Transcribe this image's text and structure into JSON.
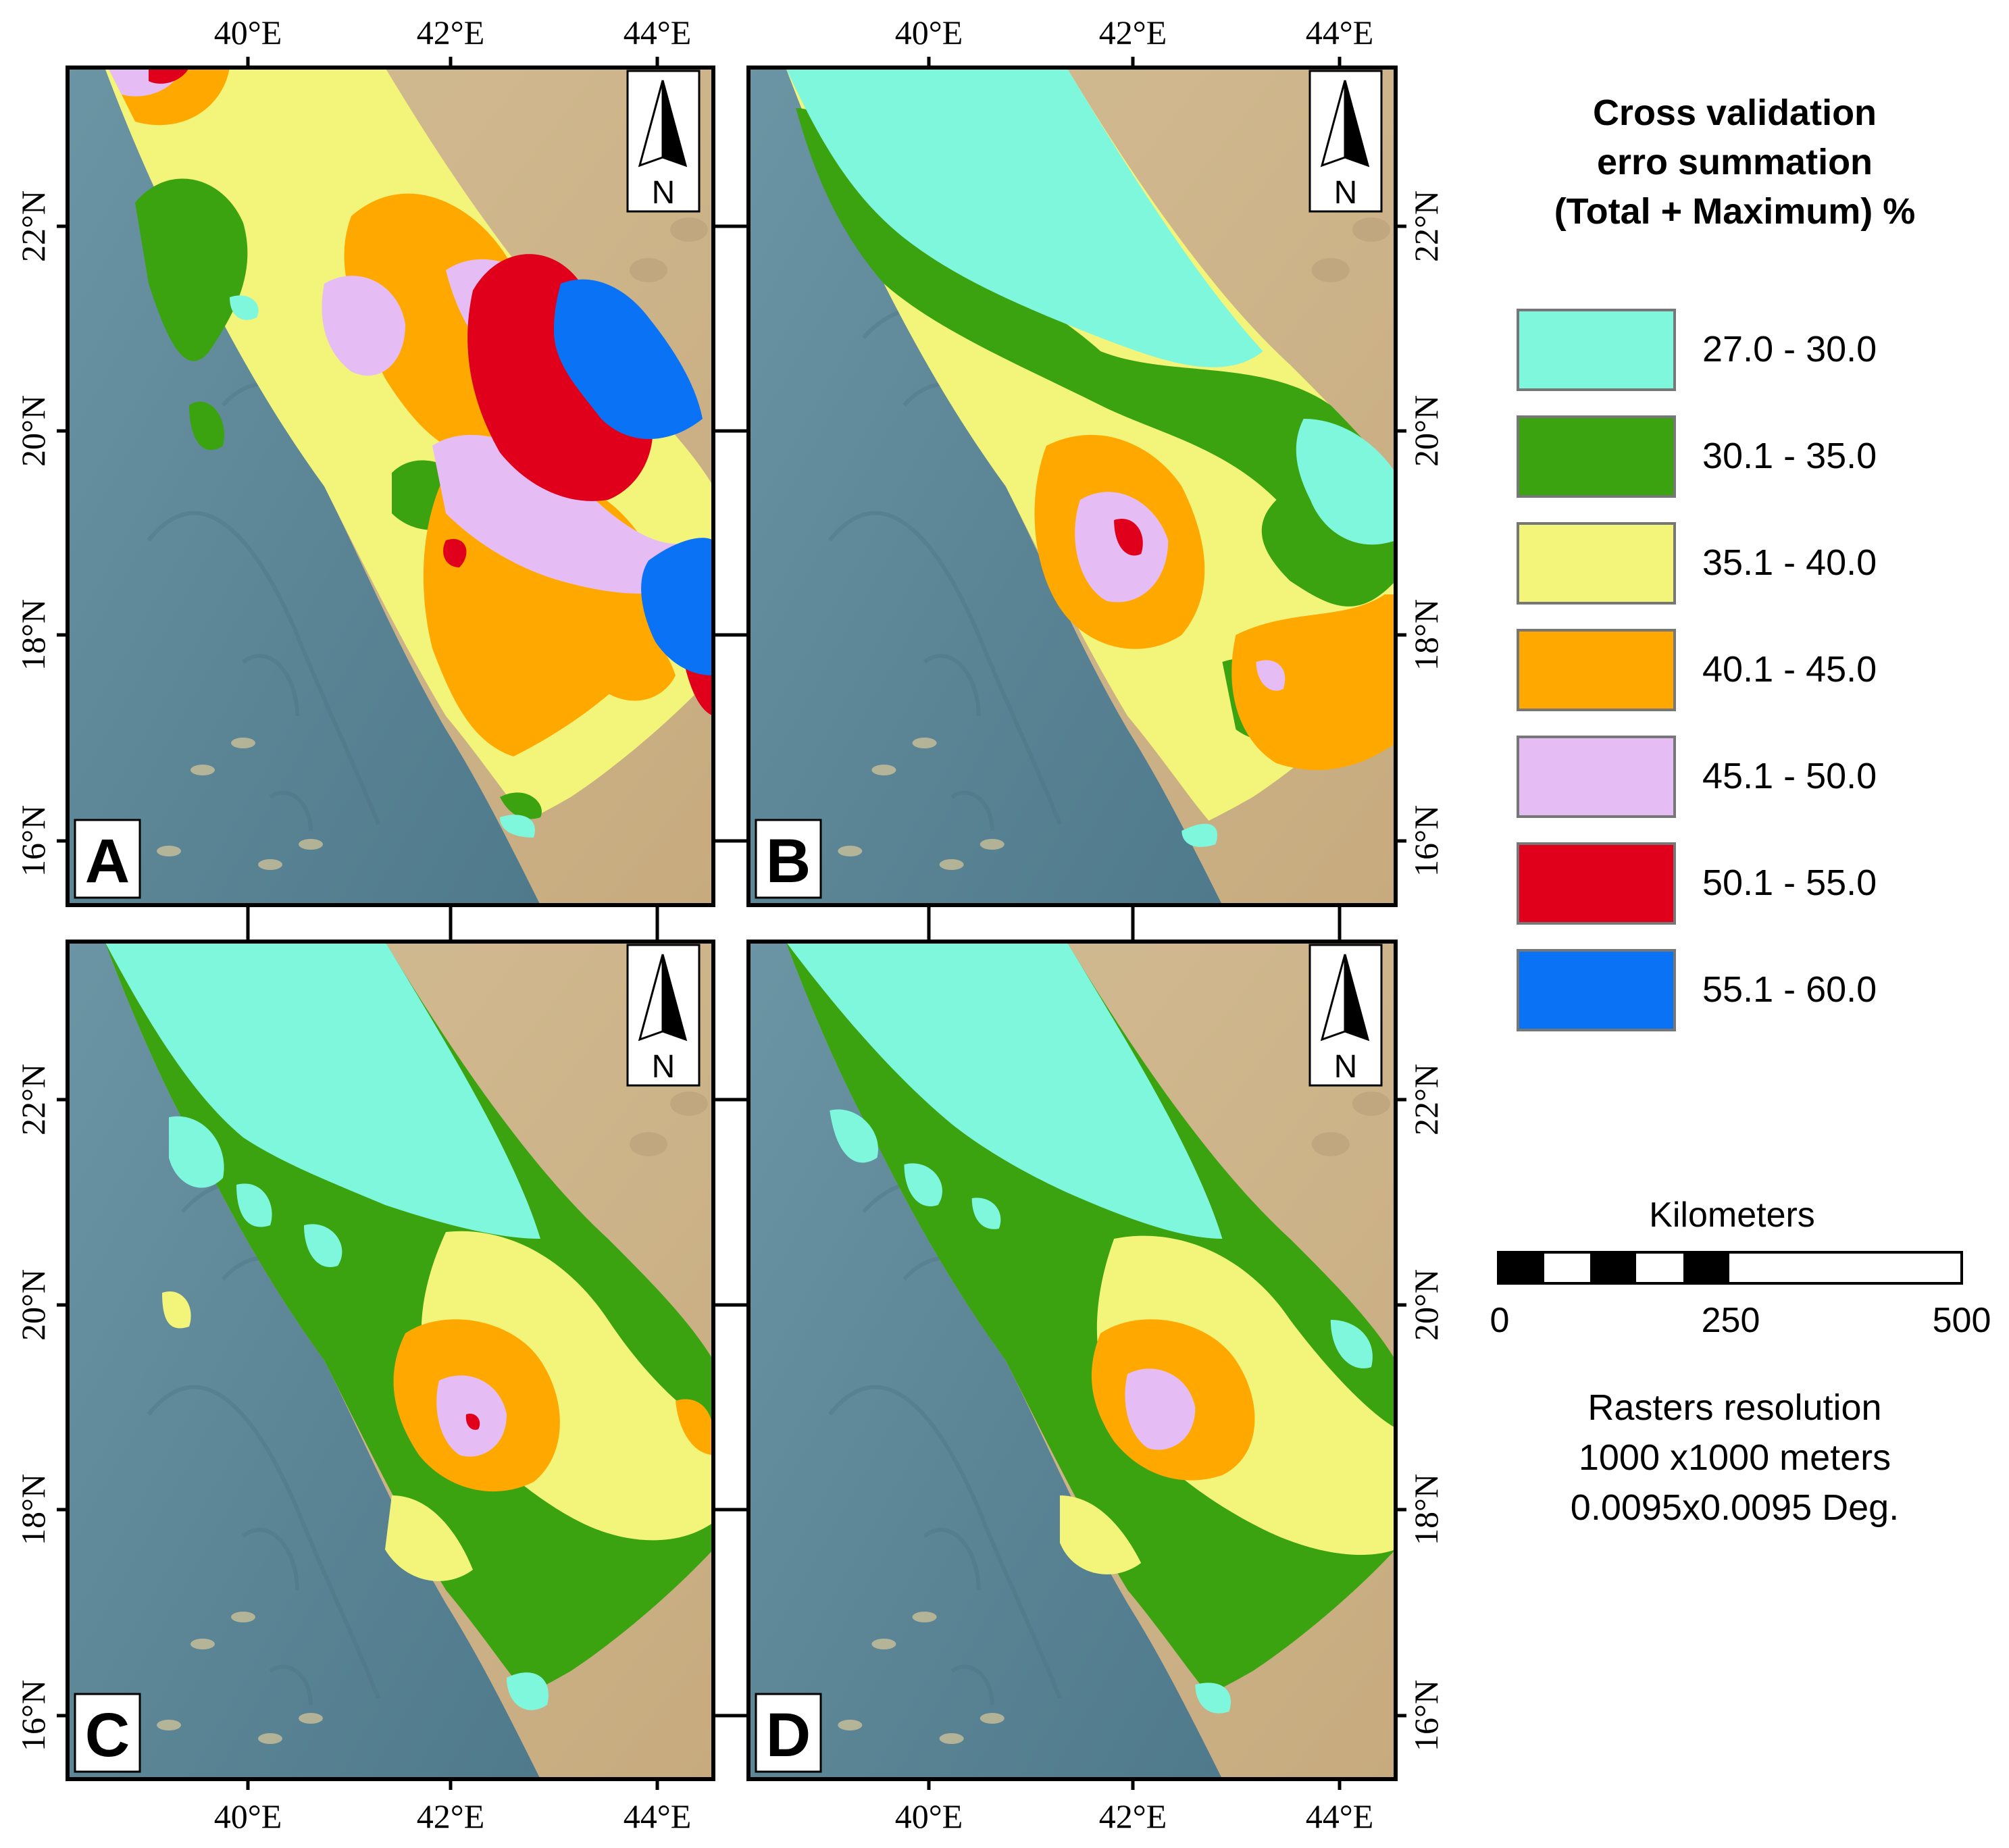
{
  "axes": {
    "top_lon_labels": [
      "40°E",
      "42°E",
      "44°E"
    ],
    "bottom_lon_labels": [
      "40°E",
      "42°E",
      "44°E"
    ],
    "lat_labels": [
      "22°N",
      "20°N",
      "18°N",
      "16°N"
    ]
  },
  "panels": [
    {
      "id": "A",
      "label": "A",
      "north_letter": "N"
    },
    {
      "id": "B",
      "label": "B",
      "north_letter": "N"
    },
    {
      "id": "C",
      "label": "C",
      "north_letter": "N"
    },
    {
      "id": "D",
      "label": "D",
      "north_letter": "N"
    }
  ],
  "legend": {
    "title_lines": [
      "Cross validation",
      "erro summation",
      "(Total + Maximum) %"
    ],
    "classes": [
      {
        "label": "27.0 - 30.0",
        "color": "#7ff7dd"
      },
      {
        "label": "30.1 - 35.0",
        "color": "#3aa30f"
      },
      {
        "label": "35.1 - 40.0",
        "color": "#f2f57a"
      },
      {
        "label": "40.1 - 45.0",
        "color": "#ffa800"
      },
      {
        "label": "45.1 - 50.0",
        "color": "#e5bdf4"
      },
      {
        "label": "50.1 - 55.0",
        "color": "#e0001b"
      },
      {
        "label": "55.1 - 60.0",
        "color": "#0a72f5"
      }
    ]
  },
  "scale_bar": {
    "title": "Kilometers",
    "ticks": [
      "0",
      "250",
      "500"
    ]
  },
  "resolution_note": {
    "lines": [
      "Rasters resolution",
      "1000 x1000 meters",
      "0.0095x0.0095 Deg."
    ]
  },
  "colors": {
    "sea": "#5d8798",
    "land": "#cdb48a",
    "frame": "#000000"
  }
}
